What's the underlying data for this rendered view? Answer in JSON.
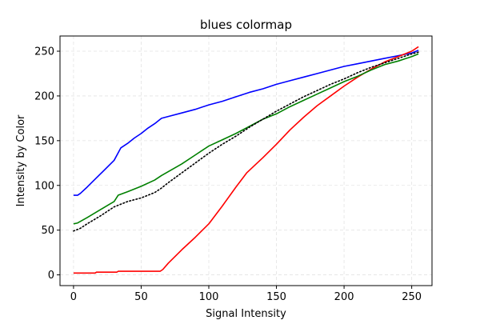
{
  "chart_data": {
    "type": "line",
    "title": "blues colormap",
    "xlabel": "Signal Intensity",
    "ylabel": "Intensity by Color",
    "xlim": [
      -10,
      265
    ],
    "ylim": [
      -12,
      267
    ],
    "xticks": [
      0,
      50,
      100,
      150,
      200,
      250
    ],
    "yticks": [
      0,
      50,
      100,
      150,
      200,
      250
    ],
    "grid": true,
    "series": [
      {
        "color": "#0000ff",
        "style": "solid",
        "x": [
          0,
          3,
          5,
          10,
          20,
          30,
          35,
          40,
          45,
          50,
          55,
          60,
          65,
          70,
          80,
          90,
          100,
          110,
          120,
          130,
          140,
          150,
          160,
          170,
          180,
          190,
          200,
          210,
          220,
          230,
          240,
          250,
          255
        ],
        "y": [
          89,
          89,
          91,
          98,
          113,
          128,
          142,
          147,
          153,
          158,
          164,
          169,
          175,
          177,
          181,
          185,
          190,
          194,
          199,
          204,
          208,
          213,
          217,
          221,
          225,
          229,
          233,
          236,
          239,
          242,
          245,
          248,
          251
        ]
      },
      {
        "color": "#ff0000",
        "style": "solid",
        "x": [
          0,
          16,
          17,
          32,
          33,
          64,
          66,
          70,
          80,
          90,
          100,
          110,
          120,
          128,
          140,
          150,
          160,
          170,
          180,
          190,
          200,
          210,
          220,
          230,
          240,
          250,
          255
        ],
        "y": [
          2,
          2,
          3,
          3,
          4,
          4,
          6,
          13,
          28,
          42,
          57,
          77,
          98,
          114,
          131,
          146,
          162,
          176,
          189,
          200,
          211,
          221,
          230,
          238,
          244,
          250,
          255
        ]
      },
      {
        "color": "#008000",
        "style": "solid",
        "x": [
          0,
          3,
          10,
          20,
          30,
          33,
          40,
          50,
          60,
          65,
          80,
          90,
          100,
          110,
          120,
          130,
          140,
          150,
          160,
          170,
          180,
          190,
          200,
          210,
          220,
          230,
          240,
          250,
          255
        ],
        "y": [
          57,
          58,
          64,
          73,
          82,
          89,
          93,
          99,
          106,
          111,
          124,
          134,
          144,
          151,
          158,
          166,
          174,
          180,
          188,
          195,
          202,
          209,
          216,
          222,
          229,
          235,
          239,
          244,
          247
        ]
      },
      {
        "color": "#000000",
        "style": "dotted",
        "x": [
          0,
          5,
          10,
          20,
          30,
          40,
          50,
          60,
          65,
          70,
          80,
          90,
          100,
          110,
          120,
          130,
          140,
          150,
          160,
          170,
          180,
          190,
          200,
          210,
          220,
          230,
          240,
          250,
          255
        ],
        "y": [
          49,
          52,
          57,
          66,
          76,
          82,
          86,
          92,
          97,
          103,
          114,
          125,
          136,
          146,
          155,
          165,
          174,
          183,
          191,
          199,
          206,
          213,
          219,
          226,
          232,
          237,
          242,
          247,
          249
        ]
      }
    ]
  }
}
